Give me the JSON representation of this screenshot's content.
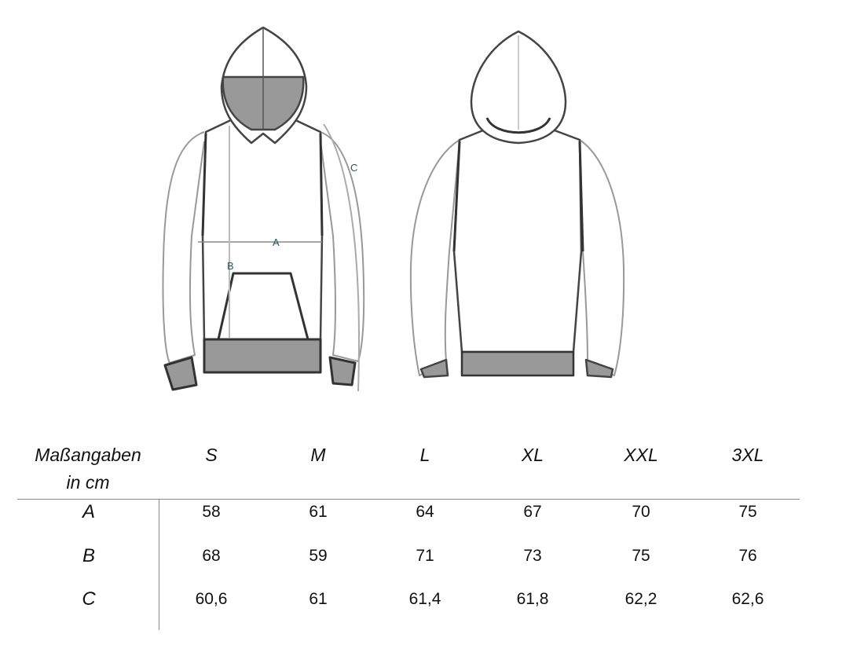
{
  "figure": {
    "labels": {
      "a": "A",
      "b": "B",
      "c": "C"
    }
  },
  "table": {
    "header_label_line1": "Maßangaben",
    "header_label_line2": "in cm",
    "sizes": [
      "S",
      "M",
      "L",
      "XL",
      "XXL",
      "3XL"
    ],
    "rows": [
      {
        "label": "A",
        "values": [
          "58",
          "61",
          "64",
          "67",
          "70",
          "75"
        ]
      },
      {
        "label": "B",
        "values": [
          "68",
          "59",
          "71",
          "73",
          "75",
          "76"
        ]
      },
      {
        "label": "C",
        "values": [
          "60,6",
          "61",
          "61,4",
          "61,8",
          "62,2",
          "62,6"
        ]
      }
    ]
  }
}
